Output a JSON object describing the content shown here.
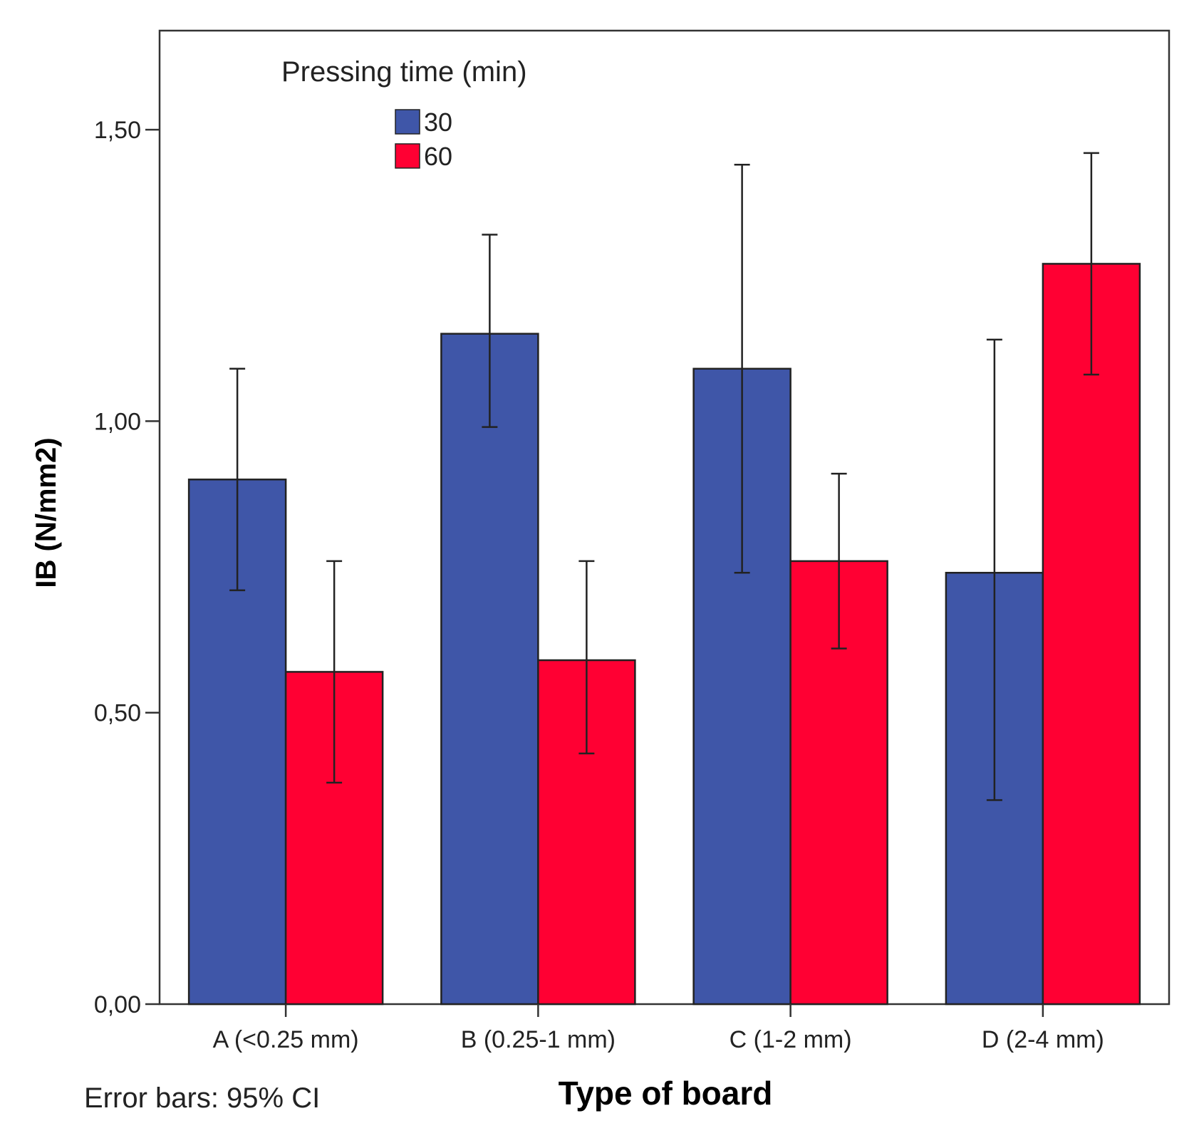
{
  "chart_data": {
    "type": "bar",
    "categories": [
      "A (<0.25 mm)",
      "B (0.25-1 mm)",
      "C (1-2 mm)",
      "D (2-4 mm)"
    ],
    "series": [
      {
        "name": "30",
        "color": "#3f56a8",
        "values": [
          0.9,
          1.15,
          1.09,
          0.74
        ],
        "ci_low": [
          0.71,
          0.99,
          0.74,
          0.35
        ],
        "ci_high": [
          1.09,
          1.32,
          1.44,
          1.14
        ]
      },
      {
        "name": "60",
        "color": "#ff0033",
        "values": [
          0.57,
          0.59,
          0.76,
          1.27
        ],
        "ci_low": [
          0.38,
          0.43,
          0.61,
          1.08
        ],
        "ci_high": [
          0.76,
          0.76,
          0.91,
          1.46
        ]
      }
    ],
    "ylim": [
      0,
      1.67
    ],
    "yticks": [
      0,
      0.5,
      1.0,
      1.5
    ],
    "ytick_labels": [
      "0,00",
      "0,50",
      "1,00",
      "1,50"
    ],
    "xlabel": "Type of board",
    "ylabel": "IB (N/mm2)",
    "legend_title": "Pressing time (min)",
    "legend_position": "top-left",
    "note": "Error bars: 95% CI",
    "grid": false
  }
}
